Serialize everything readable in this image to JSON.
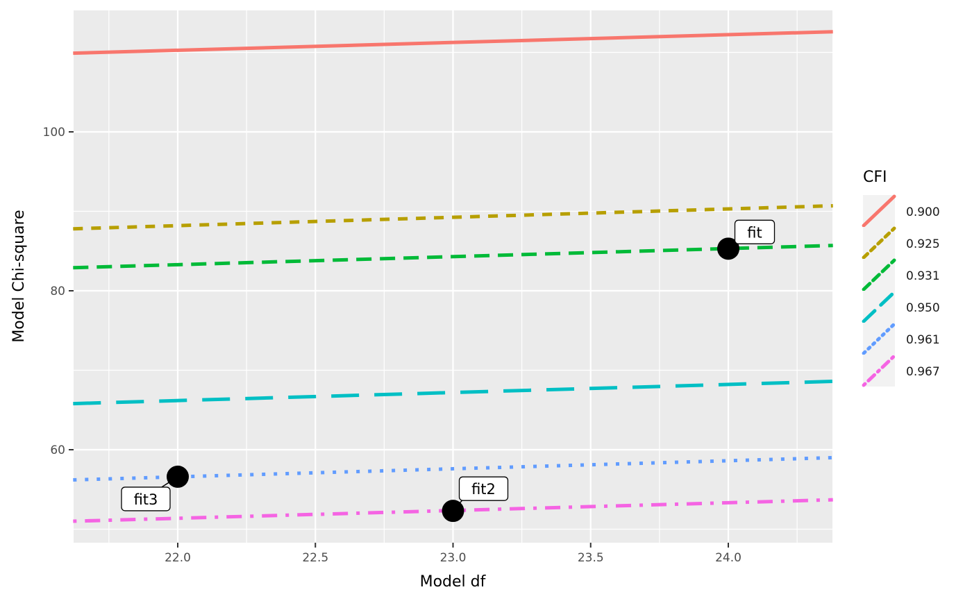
{
  "chart_data": {
    "type": "line",
    "title": "",
    "xlabel": "Model df",
    "ylabel": "Model Chi-square",
    "xlim": [
      21.62,
      24.38
    ],
    "ylim": [
      48.4,
      115.4
    ],
    "x_ticks": [
      "22.0",
      "22.5",
      "23.0",
      "23.5",
      "24.0"
    ],
    "x_tick_values": [
      22.0,
      22.5,
      23.0,
      23.5,
      24.0
    ],
    "y_ticks": [
      "60",
      "80",
      "100"
    ],
    "y_tick_values": [
      60,
      80,
      100
    ],
    "grid": true,
    "legend": {
      "title": "CFI",
      "position": "right"
    },
    "series": [
      {
        "name": "0.900",
        "color": "#F8766D",
        "linetype": "solid",
        "x": [
          21.62,
          24.38
        ],
        "values": [
          109.9,
          112.6
        ]
      },
      {
        "name": "0.925",
        "color": "#B79F00",
        "linetype": "dotted-dash",
        "x": [
          21.62,
          24.38
        ],
        "values": [
          87.8,
          90.7
        ]
      },
      {
        "name": "0.931",
        "color": "#00BA38",
        "linetype": "dashed",
        "x": [
          21.62,
          24.38
        ],
        "values": [
          82.9,
          85.7
        ]
      },
      {
        "name": "0.950",
        "color": "#00BFC4",
        "linetype": "longdash",
        "x": [
          21.62,
          24.38
        ],
        "values": [
          65.8,
          68.6
        ]
      },
      {
        "name": "0.961",
        "color": "#619CFF",
        "linetype": "dotted",
        "x": [
          21.62,
          24.38
        ],
        "values": [
          56.2,
          59.0
        ]
      },
      {
        "name": "0.967",
        "color": "#F564E3",
        "linetype": "dotdash",
        "x": [
          21.62,
          24.38
        ],
        "values": [
          51.0,
          53.7
        ]
      }
    ],
    "points": [
      {
        "label": "fit",
        "x": 24.0,
        "y": 85.3
      },
      {
        "label": "fit2",
        "x": 23.0,
        "y": 52.3
      },
      {
        "label": "fit3",
        "x": 22.0,
        "y": 56.6
      }
    ]
  },
  "legend": {
    "title": "CFI",
    "items": [
      "0.900",
      "0.925",
      "0.931",
      "0.950",
      "0.961",
      "0.967"
    ]
  },
  "axes": {
    "x_title": "Model df",
    "y_title": "Model Chi-square"
  }
}
